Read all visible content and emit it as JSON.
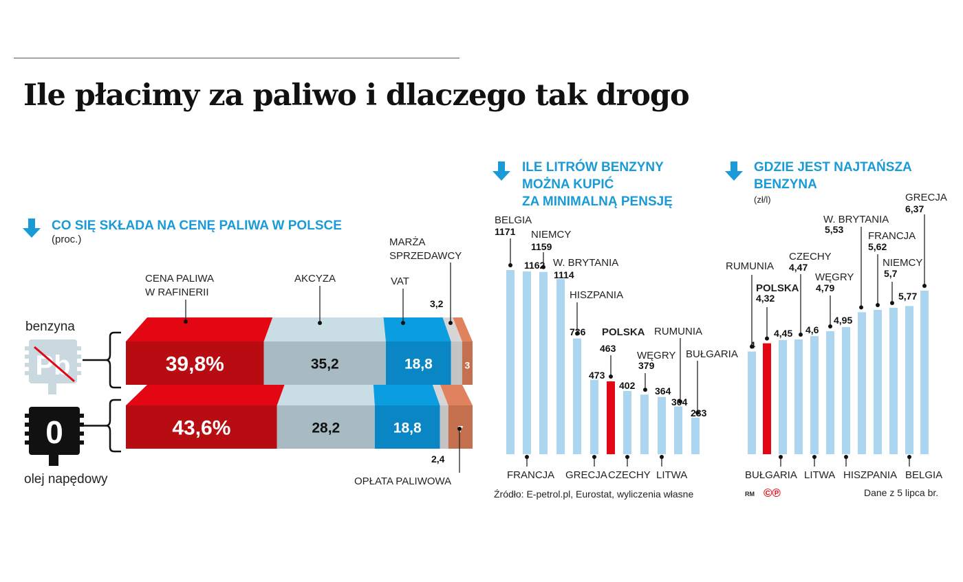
{
  "title": "Ile płacimy za paliwo i dlaczego tak drogo",
  "colors": {
    "accent_blue": "#1a9ad6",
    "highlight_red": "#e30613",
    "bar_blue": "#acd6f0"
  },
  "icons": {
    "section_arrow": "arrow-down-icon",
    "petrol": "unleaded-pb-icon",
    "diesel": "diesel-0-icon"
  },
  "chart_data": [
    {
      "type": "bar",
      "orientation": "horizontal-stacked",
      "title": "CO SIĘ SKŁADA NA CENĘ PALIWA W POLSCE",
      "subtitle": "(proc.)",
      "components": [
        "CENA PALIWA W RAFINERII",
        "AKCYZA",
        "VAT",
        "MARŻA SPRZEDAWCY",
        "OPŁATA PALIWOWA"
      ],
      "component_labels": {
        "refinery": [
          "CENA PALIWA",
          "W RAFINERII"
        ],
        "excise": "AKCYZA",
        "vat": "VAT",
        "margin": [
          "MARŻA",
          "SPRZEDAWCY"
        ],
        "fuel_fee": "OPŁATA PALIWOWA"
      },
      "component_colors": [
        "#e30613",
        "#c8dde4",
        "#0a9ee0",
        "#d6d6d6",
        "#e0825e"
      ],
      "series": [
        {
          "name": "benzyna",
          "values": [
            39.8,
            35.2,
            18.8,
            3.2,
            3
          ],
          "labels": [
            "39,8%",
            "35,2",
            "18,8",
            "3,2",
            "3"
          ]
        },
        {
          "name": "olej napędowy",
          "values": [
            43.6,
            28.2,
            18.8,
            2.4,
            7
          ],
          "labels": [
            "43,6%",
            "28,2",
            "18,8",
            "2,4",
            "7"
          ]
        }
      ],
      "xlim": [
        0,
        100
      ]
    },
    {
      "type": "bar",
      "title": [
        "ILE LITRÓW BENZYNY",
        "MOŻNA KUPIĆ",
        "ZA MINIMALNĄ PENSJĘ"
      ],
      "categories": [
        "BELGIA",
        "FRANCJA",
        "NIEMCY",
        "W. BRYTANIA",
        "HISZPANIA",
        "GRECJA",
        "POLSKA",
        "CZECHY",
        "WĘGRY",
        "LITWA",
        "RUMUNIA",
        "BUŁGARIA"
      ],
      "values": [
        1171,
        1162,
        1159,
        1114,
        736,
        473,
        463,
        402,
        379,
        364,
        304,
        233
      ],
      "highlight": "POLSKA",
      "ylim": [
        0,
        1171
      ],
      "grid": false,
      "source": "Źródło: E-petrol.pl, Eurostat, wyliczenia własne"
    },
    {
      "type": "bar",
      "title": [
        "GDZIE JEST NAJTAŃSZA",
        "BENZYNA"
      ],
      "subtitle": "(zł/l)",
      "categories": [
        "RUMUNIA",
        "POLSKA",
        "BUŁGARIA",
        "CZECHY",
        "LITWA",
        "WĘGRY",
        "HISZPANIA",
        "W. BRYTANIA",
        "FRANCJA",
        "NIEMCY",
        "BELGIA",
        "GRECJA"
      ],
      "values": [
        4,
        4.32,
        4.45,
        4.47,
        4.6,
        4.79,
        4.95,
        5.53,
        5.62,
        5.7,
        5.77,
        6.37
      ],
      "value_labels": [
        "4",
        "4,32",
        "4,45",
        "4,47",
        "4,6",
        "4,79",
        "4,95",
        "5,53",
        "5,62",
        "5,7",
        "5,77",
        "6,37"
      ],
      "highlight": "POLSKA",
      "ylim": [
        0,
        6.37
      ],
      "grid": false,
      "note": "Dane z 5 lipca br."
    }
  ],
  "credits": {
    "initials": "RM",
    "logo_text": "©℗"
  }
}
